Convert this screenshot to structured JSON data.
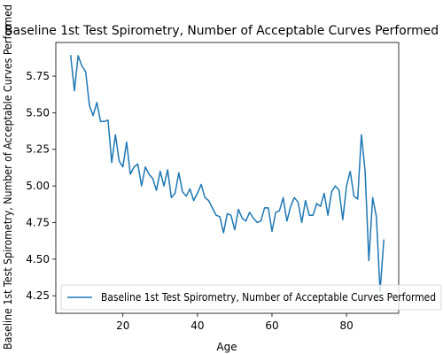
{
  "chart_data": {
    "type": "line",
    "title": "Baseline 1st Test Spirometry, Number of Acceptable Curves Performed",
    "xlabel": "Age",
    "ylabel": "Baseline 1st Test Spirometry, Number of Acceptable Curves Performed",
    "xlim": [
      2,
      94
    ],
    "ylim": [
      4.13,
      5.98
    ],
    "xticks": [
      20,
      40,
      60,
      80
    ],
    "yticks": [
      4.25,
      4.5,
      4.75,
      5.0,
      5.25,
      5.5,
      5.75
    ],
    "xtick_labels": [
      "20",
      "40",
      "60",
      "80"
    ],
    "ytick_labels": [
      "4.25",
      "4.50",
      "4.75",
      "5.00",
      "5.25",
      "5.50",
      "5.75"
    ],
    "grid": false,
    "legend_position": "lower-right",
    "series": [
      {
        "name": "Baseline 1st Test Spirometry, Number of Acceptable Curves Performed",
        "color": "#1f77b4",
        "x": [
          6,
          7,
          8,
          9,
          10,
          11,
          12,
          13,
          14,
          15,
          16,
          17,
          18,
          19,
          20,
          21,
          22,
          23,
          24,
          25,
          26,
          27,
          28,
          29,
          30,
          31,
          32,
          33,
          34,
          35,
          36,
          37,
          38,
          39,
          40,
          41,
          42,
          43,
          44,
          45,
          46,
          47,
          48,
          49,
          50,
          51,
          52,
          53,
          54,
          55,
          56,
          57,
          58,
          59,
          60,
          61,
          62,
          63,
          64,
          65,
          66,
          67,
          68,
          69,
          70,
          71,
          72,
          73,
          74,
          75,
          76,
          77,
          78,
          79,
          80,
          81,
          82,
          83,
          84,
          85,
          86,
          87,
          88,
          89,
          90
        ],
        "y": [
          5.89,
          5.65,
          5.89,
          5.82,
          5.78,
          5.55,
          5.48,
          5.57,
          5.44,
          5.44,
          5.45,
          5.16,
          5.35,
          5.17,
          5.13,
          5.3,
          5.08,
          5.13,
          5.15,
          5.0,
          5.13,
          5.08,
          5.05,
          4.97,
          5.1,
          5.0,
          5.11,
          4.92,
          4.95,
          5.09,
          4.96,
          4.93,
          4.98,
          4.9,
          4.95,
          5.01,
          4.92,
          4.9,
          4.85,
          4.8,
          4.79,
          4.68,
          4.81,
          4.8,
          4.7,
          4.84,
          4.78,
          4.76,
          4.82,
          4.78,
          4.75,
          4.76,
          4.85,
          4.85,
          4.69,
          4.82,
          4.83,
          4.92,
          4.76,
          4.86,
          4.92,
          4.89,
          4.75,
          4.9,
          4.8,
          4.8,
          4.88,
          4.86,
          4.95,
          4.8,
          4.96,
          5.0,
          4.97,
          4.77,
          5.0,
          5.1,
          4.93,
          4.91,
          5.35,
          5.1,
          4.49,
          4.92,
          4.79,
          4.28,
          4.63
        ]
      }
    ]
  }
}
